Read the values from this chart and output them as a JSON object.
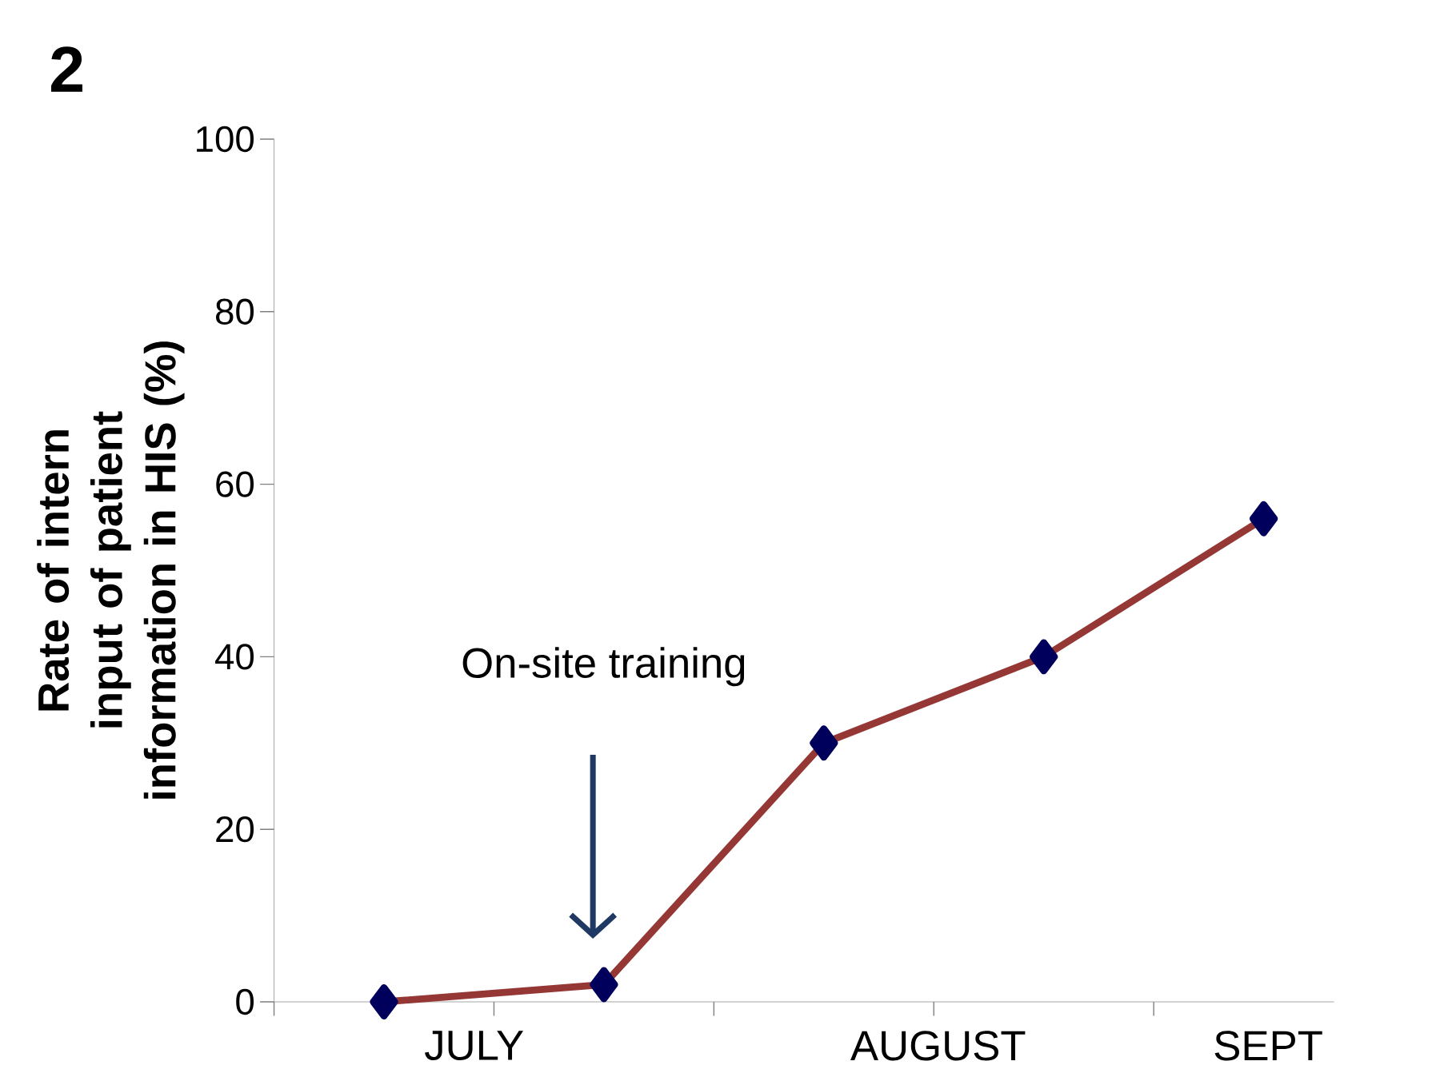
{
  "chart_data": {
    "type": "line",
    "title": "2",
    "ylabel": "Rate of intern input of patient information in HIS (%)",
    "categories": [
      null,
      null,
      null,
      null,
      null
    ],
    "series": [
      {
        "color": "#953735",
        "values": [
          0,
          2,
          30,
          40,
          56
        ]
      }
    ],
    "marker": "diamond",
    "line_style": "solid",
    "ylim": [
      0,
      100
    ],
    "yticks": [
      0,
      20,
      40,
      60,
      80,
      100
    ],
    "annotations": [
      "On-site training",
      "JULY",
      "AUGUST",
      "SEPT"
    ]
  }
}
